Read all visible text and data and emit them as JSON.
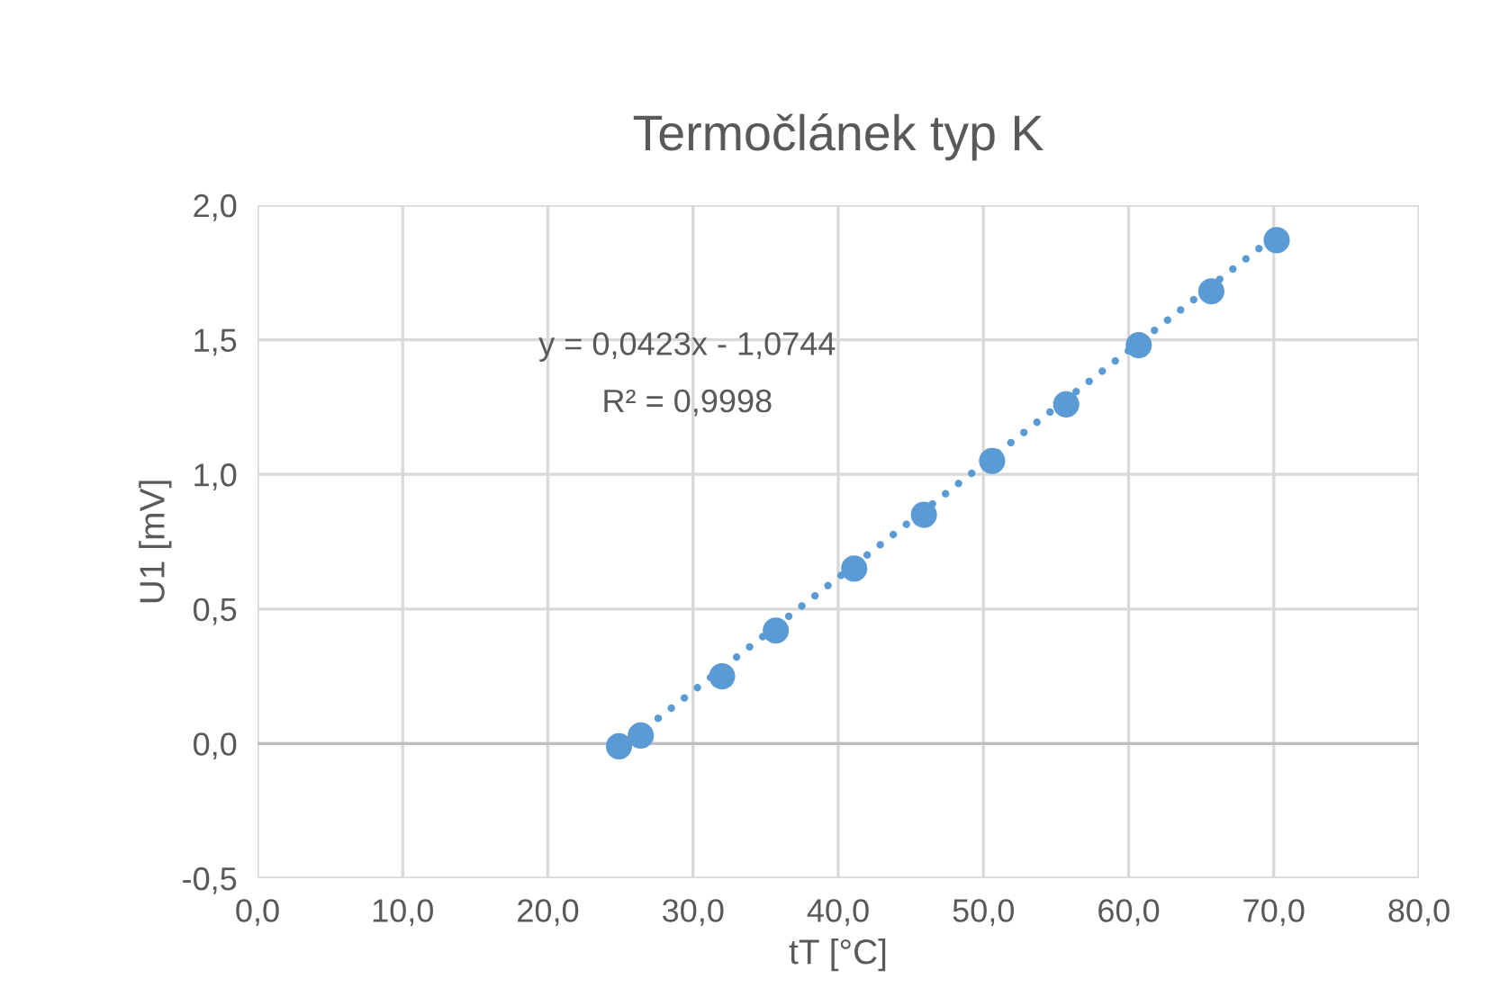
{
  "chart_data": {
    "type": "scatter",
    "title": "Termočlánek typ K",
    "xlabel": "tT [°C]",
    "ylabel": "U1 [mV]",
    "series": [
      {
        "color": "#5b9bd5",
        "marker": "circle",
        "x": [
          24.9,
          26.4,
          32.0,
          35.7,
          41.1,
          45.9,
          50.6,
          55.7,
          60.7,
          65.7,
          70.2
        ],
        "values": [
          -0.01,
          0.03,
          0.25,
          0.42,
          0.65,
          0.85,
          1.05,
          1.26,
          1.48,
          1.68,
          1.87
        ]
      },
      {
        "type": "line",
        "color": "#5b9bd5",
        "line_style": "dotted",
        "marker": "none",
        "x": [
          24.9,
          70.2
        ],
        "values": [
          -0.02,
          1.89
        ]
      }
    ],
    "annotations": [
      "y = 0,0423x - 1,0744",
      "R² = 0,9998"
    ],
    "xlim": [
      0,
      80
    ],
    "ylim": [
      -0.5,
      2.0
    ],
    "xticks": [
      {
        "value": 0,
        "label": "0,0"
      },
      {
        "value": 10,
        "label": "10,0"
      },
      {
        "value": 20,
        "label": "20,0"
      },
      {
        "value": 30,
        "label": "30,0"
      },
      {
        "value": 40,
        "label": "40,0"
      },
      {
        "value": 50,
        "label": "50,0"
      },
      {
        "value": 60,
        "label": "60,0"
      },
      {
        "value": 70,
        "label": "70,0"
      },
      {
        "value": 80,
        "label": "80,0"
      }
    ],
    "yticks": [
      {
        "value": -0.5,
        "label": "-0,5"
      },
      {
        "value": 0,
        "label": "0,0"
      },
      {
        "value": 0.5,
        "label": "0,5"
      },
      {
        "value": 1.0,
        "label": "1,0"
      },
      {
        "value": 1.5,
        "label": "1,5"
      },
      {
        "value": 2.0,
        "label": "2,0"
      }
    ],
    "grid": true
  }
}
